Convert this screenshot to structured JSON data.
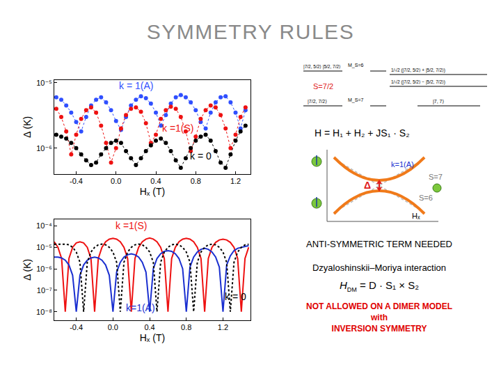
{
  "title": "SYMMETRY RULES",
  "chart_data": [
    {
      "type": "scatter",
      "xlabel": "Hₓ (T)",
      "ylabel": "Δ (K)",
      "log": "y",
      "grid": false,
      "xlim": [
        -0.62,
        1.35
      ],
      "xticks": [
        -0.4,
        {
          "value": 0,
          "label": "0.0"
        },
        0.4,
        0.8,
        1.2
      ],
      "ylim": [
        4e-07,
        1.1e-05
      ],
      "yticks": [
        {
          "value": 1e-06,
          "label": "10⁻⁶"
        },
        {
          "value": 1e-05,
          "label": "10⁻⁵"
        }
      ],
      "x": [
        -0.6,
        -0.55,
        -0.5,
        -0.45,
        -0.4,
        -0.35,
        -0.3,
        -0.25,
        -0.2,
        -0.15,
        -0.1,
        -0.05,
        0,
        0.05,
        0.1,
        0.15,
        0.2,
        0.25,
        0.3,
        0.35,
        0.4,
        0.45,
        0.5,
        0.55,
        0.6,
        0.65,
        0.7,
        0.75,
        0.8,
        0.85,
        0.9,
        0.95,
        1,
        1.05,
        1.1,
        1.15,
        1.2,
        1.25,
        1.3
      ],
      "series": [
        {
          "name": "k = 1(A)",
          "color": "#2f4fff",
          "marker": "circle",
          "line_style": "dotted",
          "values": [
            6e-06,
            5.5e-06,
            4.5e-06,
            3.5e-06,
            2.5e-06,
            1.8e-06,
            3e-06,
            4.5e-06,
            5.5e-06,
            6e-06,
            5e-06,
            3.8e-06,
            2.6e-06,
            1.9e-06,
            3e-06,
            4.5e-06,
            5.5e-06,
            6.2e-06,
            5.8e-06,
            4.8e-06,
            3.5e-06,
            2.2e-06,
            3.2e-06,
            4.8e-06,
            6e-06,
            6.5e-06,
            6e-06,
            5e-06,
            3.8e-06,
            2.5e-06,
            2e-06,
            3.5e-06,
            5e-06,
            6e-06,
            6.2e-06,
            5e-06,
            3.5e-06,
            2e-06,
            3.8e-06
          ]
        },
        {
          "name": "k =1(S)",
          "color": "#ee1111",
          "marker": "circle",
          "line_style": "dotted",
          "values": [
            4e-06,
            3e-06,
            1.8e-06,
            8e-07,
            1.6e-06,
            2.8e-06,
            3.8e-06,
            4.2e-06,
            3.5e-06,
            2.2e-06,
            1.2e-06,
            6e-07,
            1e-06,
            2e-06,
            3.2e-06,
            4e-06,
            4.2e-06,
            3.6e-06,
            2.4e-06,
            1.2e-06,
            1.6e-06,
            2.8e-06,
            3.8e-06,
            4.3e-06,
            4e-06,
            3e-06,
            1.8e-06,
            9e-07,
            1.5e-06,
            2.8e-06,
            3.8e-06,
            4.5e-06,
            4.2e-06,
            3.2e-06,
            2e-06,
            1e-06,
            1.6e-06,
            3e-06,
            4.2e-06
          ]
        },
        {
          "name": "k = 0",
          "color": "#000000",
          "marker": "circle",
          "line_style": "dotted",
          "values": [
            1.6e-06,
            1.5e-06,
            1.4e-06,
            1.2e-06,
            1e-06,
            8e-07,
            6.5e-07,
            5.5e-07,
            6e-07,
            8e-07,
            1e-06,
            1.2e-06,
            1.3e-06,
            1.2e-06,
            9e-07,
            7e-07,
            5.5e-07,
            7e-07,
            9e-07,
            1.1e-06,
            1.3e-06,
            1.4e-06,
            1.2e-06,
            9e-07,
            6.5e-07,
            5e-07,
            7e-07,
            1e-06,
            1.3e-06,
            1.5e-06,
            1.6e-06,
            1.3e-06,
            9e-07,
            6e-07,
            5e-07,
            8e-07,
            1.3e-06,
            1.8e-06,
            2.2e-06
          ]
        }
      ],
      "annotations": [
        {
          "text": "k = 1(A)",
          "x": 0.2,
          "y": 9e-06
        },
        {
          "text": "k =1(S)",
          "x": 0.62,
          "y": 2e-06
        },
        {
          "text": "k = 0",
          "x": 0.85,
          "y": 7.5e-07
        }
      ]
    },
    {
      "type": "line",
      "xlabel": "Hₓ (T)",
      "ylabel": "Δ (K)",
      "log": "y",
      "grid": false,
      "xlim": [
        -0.64,
        1.5
      ],
      "xticks": [
        -0.4,
        {
          "value": 0,
          "label": "0.0"
        },
        0.4,
        0.8,
        1.2
      ],
      "ylim": [
        4e-09,
        0.0002
      ],
      "yticks": [
        {
          "value": 1e-08,
          "label": "10⁻⁸"
        },
        {
          "value": 1e-07,
          "label": "10⁻⁷"
        },
        {
          "value": 1e-06,
          "label": "10⁻⁶"
        },
        {
          "value": 1e-05,
          "label": "10⁻⁵"
        },
        {
          "value": 0.0001,
          "label": "10⁻⁴"
        }
      ],
      "x": [
        -0.64,
        -0.6,
        -0.56,
        -0.52,
        -0.48,
        -0.44,
        -0.4,
        -0.36,
        -0.32,
        -0.28,
        -0.24,
        -0.2,
        -0.16,
        -0.12,
        -0.08,
        -0.04,
        0,
        0.04,
        0.08,
        0.12,
        0.16,
        0.2,
        0.24,
        0.28,
        0.32,
        0.36,
        0.4,
        0.44,
        0.48,
        0.52,
        0.56,
        0.6,
        0.64,
        0.68,
        0.72,
        0.76,
        0.8,
        0.84,
        0.88,
        0.92,
        0.96,
        1,
        1.04,
        1.08,
        1.12,
        1.16,
        1.2,
        1.24,
        1.28,
        1.32,
        1.36,
        1.4,
        1.44,
        1.48
      ],
      "series": [
        {
          "name": "k =1(S)",
          "color": "#ee1111",
          "marker": "none",
          "line_style": "solid",
          "values": [
            1.8e-05,
            1e-05,
            3e-06,
            1e-08,
            3e-06,
            1e-05,
            1.6e-05,
            1.8e-05,
            1.6e-05,
            1e-05,
            3e-06,
            1e-08,
            3e-06,
            1e-05,
            1.8e-05,
            2.4e-05,
            2.6e-05,
            2.4e-05,
            1.8e-05,
            1e-05,
            3e-06,
            1e-08,
            3e-06,
            1e-05,
            1.8e-05,
            2.4e-05,
            2.7e-05,
            2.4e-05,
            1.8e-05,
            1e-05,
            3e-06,
            1e-08,
            3e-06,
            1e-05,
            1.8e-05,
            2.4e-05,
            2.6e-05,
            2.4e-05,
            1.8e-05,
            1e-05,
            3e-06,
            1e-08,
            3e-06,
            1e-05,
            1.7e-05,
            2.2e-05,
            2.4e-05,
            2.2e-05,
            1.7e-05,
            1e-05,
            3e-06,
            1e-08,
            3e-06,
            1e-05
          ]
        },
        {
          "name": "k=1(A)",
          "color": "#1a2fd0",
          "marker": "none",
          "line_style": "solid",
          "values": [
            3.5e-06,
            3.5e-06,
            3.2e-06,
            2.5e-06,
            1.5e-06,
            5e-07,
            1e-08,
            5e-07,
            1.5e-06,
            2.5e-06,
            3.2e-06,
            3.5e-06,
            3.2e-06,
            2.5e-06,
            1.5e-06,
            5e-07,
            1e-08,
            7e-07,
            2e-06,
            3.5e-06,
            4.5e-06,
            5e-06,
            4.5e-06,
            3.5e-06,
            2e-06,
            7e-07,
            1e-08,
            1e-06,
            3e-06,
            5e-06,
            6.5e-06,
            7e-06,
            6.5e-06,
            5e-06,
            3e-06,
            1e-06,
            1e-08,
            1.2e-06,
            3.5e-06,
            6e-06,
            8e-06,
            9e-06,
            8e-06,
            6e-06,
            3.5e-06,
            1.2e-06,
            1e-08,
            1.5e-06,
            4e-06,
            7e-06,
            9e-06,
            1e-05,
            1.1e-05,
            1.2e-05
          ]
        },
        {
          "name": "k = 0",
          "color": "#000000",
          "marker": "none",
          "line_style": "dotted",
          "values": [
            1.4e-05,
            1.4e-05,
            1.4e-05,
            1.4e-05,
            1.3e-05,
            1e-05,
            6e-06,
            2e-06,
            1e-08,
            2e-06,
            6e-06,
            1e-05,
            1.3e-05,
            1.4e-05,
            1.3e-05,
            1e-05,
            6e-06,
            2e-06,
            1e-08,
            2e-06,
            6e-06,
            1e-05,
            1.3e-05,
            1.4e-05,
            1.3e-05,
            1e-05,
            6e-06,
            2e-06,
            1e-08,
            2e-06,
            6e-06,
            1e-05,
            1.3e-05,
            1.4e-05,
            1.3e-05,
            1e-05,
            6e-06,
            2e-06,
            1e-08,
            2e-06,
            6e-06,
            1e-05,
            1.3e-05,
            1.4e-05,
            1.3e-05,
            1e-05,
            6e-06,
            2e-06,
            1e-08,
            2e-06,
            6e-06,
            1e-05,
            1.3e-05,
            1.4e-05
          ]
        }
      ],
      "annotations": [
        {
          "text": "k =1(S)",
          "x": 0.2,
          "y": 0.0001
        },
        {
          "text": "k=1(A)",
          "x": 0.3,
          "y": 1.5e-08
        },
        {
          "text": "k = 0",
          "x": 1.34,
          "y": 5e-08
        }
      ]
    }
  ],
  "diagram": {
    "spin_label": "S=7/2",
    "kets_left": [
      "|7/2, 5/2⟩ |5/2, 7/2⟩",
      "|7/2, 7/2⟩"
    ],
    "ms_labels": [
      "M_S=6",
      "M_S=7"
    ],
    "kets_right": [
      "1/√2 (|7/2, 5/2⟩ + |5/2, 7/2⟩)",
      "1/√2 (|7/2, 5/2⟩ − |5/2, 7/2⟩)",
      "|7, 7⟩"
    ],
    "hamiltonian": "H = H₁ + H₂ + JS₁ · S₂",
    "crossing": {
      "branch_label": "k=1(A)",
      "gap": "Δ",
      "upper": "S=7",
      "lower": "S=6",
      "axis": "Hₓ"
    }
  },
  "notes": {
    "heading": "ANTI-SYMMETRIC TERM NEEDED",
    "interaction": "Dzyaloshinskii–Moriya interaction",
    "formula": {
      "symbol": "H",
      "subscript": "DM",
      "expression": "= D · S₁ × S₂"
    },
    "warning": [
      "NOT ALLOWED ON A DIMER MODEL",
      "with",
      "INVERSION SYMMETRY"
    ]
  }
}
